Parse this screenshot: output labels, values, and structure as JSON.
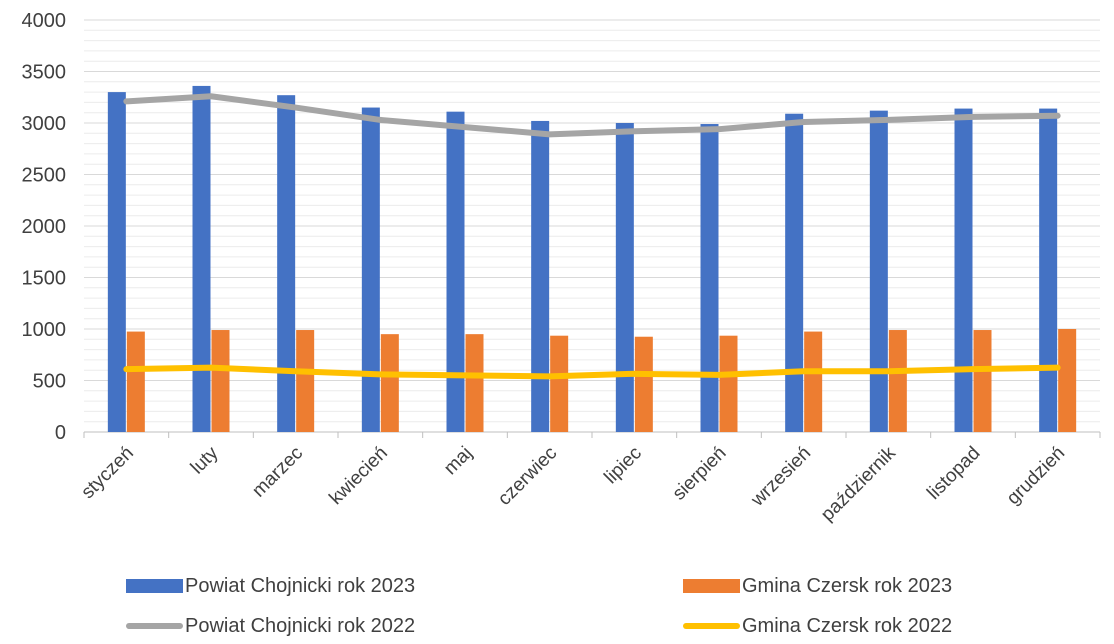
{
  "chart_data": {
    "type": "bar",
    "title": "",
    "xlabel": "",
    "ylabel": "",
    "ylim": [
      0,
      4000
    ],
    "yticks": [
      0,
      500,
      1000,
      1500,
      2000,
      2500,
      3000,
      3500,
      4000
    ],
    "minor_grid_step": 100,
    "grid": true,
    "legend_position": "bottom",
    "categories": [
      "styczeń",
      "luty",
      "marzec",
      "kwiecień",
      "maj",
      "czerwiec",
      "lipiec",
      "sierpień",
      "wrzesień",
      "październik",
      "listopad",
      "grudzień"
    ],
    "series": [
      {
        "name": "Powiat Chojnicki rok 2023",
        "type": "bar",
        "color": "#4472C4",
        "values": [
          3300,
          3360,
          3270,
          3150,
          3110,
          3020,
          3000,
          2990,
          3090,
          3120,
          3140,
          3140
        ]
      },
      {
        "name": "Gmina Czersk rok 2023",
        "type": "bar",
        "color": "#ED7D31",
        "values": [
          975,
          990,
          990,
          950,
          950,
          935,
          925,
          935,
          975,
          990,
          990,
          1000
        ]
      },
      {
        "name": "Powiat Chojnicki rok 2022",
        "type": "line",
        "color": "#A5A5A5",
        "values": [
          3210,
          3260,
          3150,
          3030,
          2960,
          2890,
          2920,
          2940,
          3010,
          3030,
          3060,
          3070
        ]
      },
      {
        "name": "Gmina Czersk rok 2022",
        "type": "line",
        "color": "#FFC000",
        "values": [
          610,
          625,
          590,
          560,
          550,
          540,
          565,
          555,
          590,
          590,
          610,
          625
        ]
      }
    ]
  }
}
